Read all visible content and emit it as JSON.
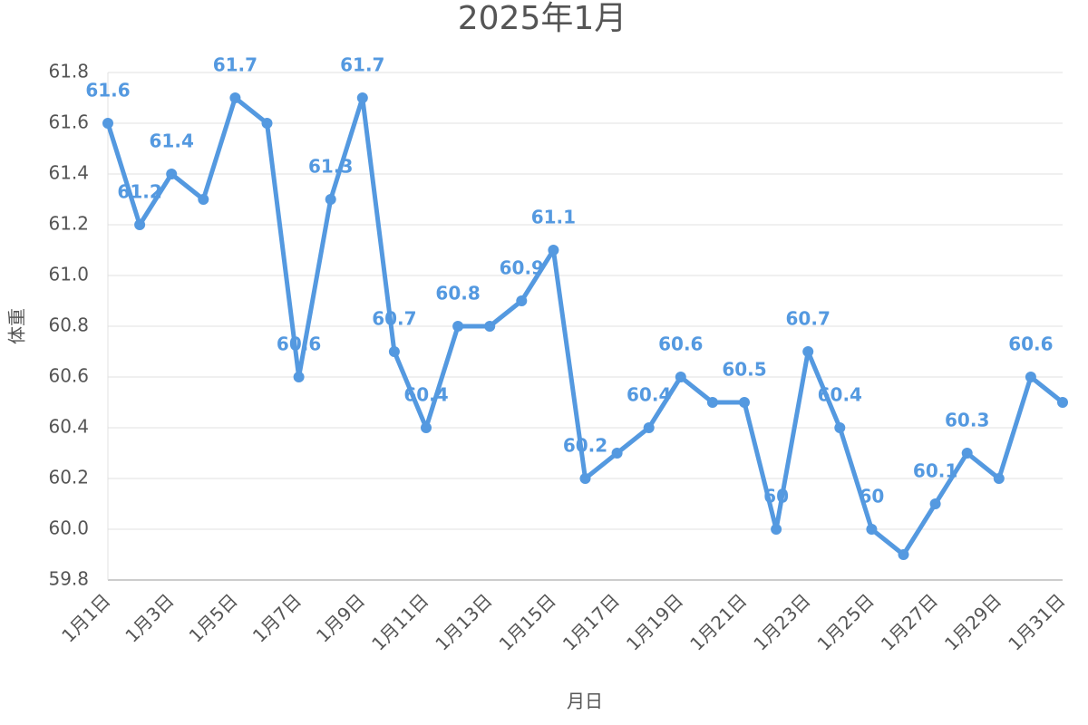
{
  "chart_data": {
    "type": "line",
    "title": "2025年1月",
    "x_label": "月日",
    "y_label": "体重",
    "categories": [
      "1月1日",
      null,
      "1月3日",
      null,
      "1月5日",
      null,
      "1月7日",
      null,
      "1月9日",
      null,
      "1月11日",
      null,
      "1月13日",
      null,
      "1月15日",
      null,
      "1月17日",
      null,
      "1月19日",
      null,
      "1月21日",
      null,
      "1月23日",
      null,
      "1月25日",
      null,
      "1月27日",
      null,
      "1月29日",
      null,
      "1月31日"
    ],
    "values": [
      61.6,
      61.2,
      61.4,
      61.3,
      61.7,
      61.6,
      60.6,
      61.3,
      61.7,
      60.7,
      60.4,
      60.8,
      60.8,
      60.9,
      61.1,
      60.2,
      60.3,
      60.4,
      60.6,
      60.5,
      60.5,
      60.0,
      60.7,
      60.4,
      60.0,
      59.9,
      60.1,
      60.3,
      60.2,
      60.6,
      60.5
    ],
    "value_labels": [
      "61.6",
      "61.2",
      "61.4",
      null,
      "61.7",
      null,
      "60.6",
      "61.3",
      "61.7",
      "60.7",
      "60.4",
      "60.8",
      null,
      "60.9",
      "61.1",
      "60.2",
      null,
      "60.4",
      "60.6",
      null,
      "60.5",
      "60",
      "60.7",
      "60.4",
      "60",
      null,
      "60.1",
      "60.3",
      null,
      "60.6",
      null
    ],
    "color": "#5499e0",
    "ylim": [
      59.8,
      61.8
    ],
    "yticks": [
      59.8,
      {
        "value": 60,
        "label": "60.0"
      },
      60.2,
      60.4,
      60.6,
      60.8,
      {
        "value": 61,
        "label": "61.0"
      },
      61.2,
      61.4,
      61.6,
      61.8
    ],
    "grid": true
  }
}
